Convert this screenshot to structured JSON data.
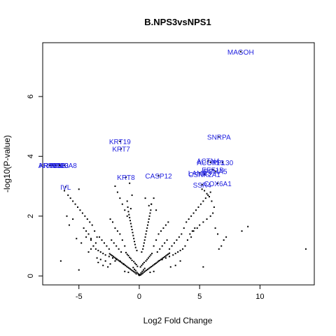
{
  "chart_data": {
    "type": "scatter",
    "title": "B.NPS3vsNPS1",
    "xlabel": "Log2 Fold Change",
    "ylabel": "-log10(P-value)",
    "xlim": [
      -8,
      14.5
    ],
    "ylim": [
      -0.3,
      7.8
    ],
    "xticks": [
      -5,
      0,
      5,
      10
    ],
    "yticks": [
      0,
      2,
      4,
      6
    ],
    "point_color": "#000000",
    "label_color": "#1f1fe0",
    "labeled_genes": [
      {
        "name": "MAGOH",
        "x": 8.4,
        "y": 7.5
      },
      {
        "name": "SNRPA",
        "x": 6.6,
        "y": 4.65
      },
      {
        "name": "KRT19",
        "x": -1.6,
        "y": 4.5
      },
      {
        "name": "KRT7",
        "x": -1.5,
        "y": 4.25
      },
      {
        "name": "ACOT13",
        "x": 5.9,
        "y": 3.8
      },
      {
        "name": "RPL30",
        "x": 6.9,
        "y": 3.8
      },
      {
        "name": "ACTN4",
        "x": 5.7,
        "y": 3.85
      },
      {
        "name": "KRT8",
        "x": -1.1,
        "y": 3.3
      },
      {
        "name": "CASP12",
        "x": 1.6,
        "y": 3.35
      },
      {
        "name": "LAMB3",
        "x": 5.0,
        "y": 3.45
      },
      {
        "name": "EEF1B",
        "x": 6.1,
        "y": 3.55
      },
      {
        "name": "PSMA5",
        "x": 6.3,
        "y": 3.5
      },
      {
        "name": "CSNK2A1",
        "x": 5.4,
        "y": 3.4
      },
      {
        "name": "SSR4",
        "x": 5.2,
        "y": 3.05
      },
      {
        "name": "COX6A1",
        "x": 6.5,
        "y": 3.1
      },
      {
        "name": "ARPC1B",
        "x": -7.2,
        "y": 3.7
      },
      {
        "name": "KRT15",
        "x": -7.4,
        "y": 3.7
      },
      {
        "name": "SFN",
        "x": -6.9,
        "y": 3.7
      },
      {
        "name": "PKP3",
        "x": -6.6,
        "y": 3.7
      },
      {
        "name": "S100A8",
        "x": -6.2,
        "y": 3.7
      },
      {
        "name": "IVL",
        "x": -6.1,
        "y": 2.98
      }
    ],
    "points": [
      [
        0.05,
        0.05
      ],
      [
        -0.1,
        0.08
      ],
      [
        0.15,
        0.1
      ],
      [
        -0.2,
        0.12
      ],
      [
        0.25,
        0.15
      ],
      [
        -0.3,
        0.18
      ],
      [
        0.35,
        0.2
      ],
      [
        -0.4,
        0.22
      ],
      [
        0.45,
        0.25
      ],
      [
        -0.5,
        0.28
      ],
      [
        0.1,
        0.3
      ],
      [
        -0.15,
        0.32
      ],
      [
        0.2,
        0.35
      ],
      [
        -0.25,
        0.38
      ],
      [
        0.3,
        0.4
      ],
      [
        -0.35,
        0.42
      ],
      [
        0.4,
        0.45
      ],
      [
        -0.45,
        0.48
      ],
      [
        0.55,
        0.5
      ],
      [
        -0.6,
        0.52
      ],
      [
        0.65,
        0.55
      ],
      [
        -0.7,
        0.58
      ],
      [
        0.75,
        0.6
      ],
      [
        -0.8,
        0.62
      ],
      [
        0.85,
        0.65
      ],
      [
        -0.9,
        0.68
      ],
      [
        0.95,
        0.7
      ],
      [
        -1.0,
        0.72
      ],
      [
        1.05,
        0.75
      ],
      [
        -1.1,
        0.78
      ],
      [
        0.2,
        0.8
      ],
      [
        -0.2,
        0.85
      ],
      [
        0.3,
        0.9
      ],
      [
        -0.3,
        0.95
      ],
      [
        0.35,
        1.0
      ],
      [
        -0.35,
        1.05
      ],
      [
        0.4,
        1.1
      ],
      [
        -0.4,
        1.15
      ],
      [
        0.45,
        1.2
      ],
      [
        -0.45,
        1.25
      ],
      [
        0.5,
        1.3
      ],
      [
        -0.5,
        1.35
      ],
      [
        0.55,
        1.4
      ],
      [
        -0.55,
        1.45
      ],
      [
        0.6,
        1.5
      ],
      [
        -0.6,
        1.55
      ],
      [
        0.65,
        1.6
      ],
      [
        -0.65,
        1.65
      ],
      [
        0.7,
        1.7
      ],
      [
        -0.7,
        1.75
      ],
      [
        0.75,
        1.8
      ],
      [
        -0.75,
        1.85
      ],
      [
        0.8,
        1.9
      ],
      [
        -0.8,
        1.95
      ],
      [
        0.85,
        2.0
      ],
      [
        -0.85,
        2.05
      ],
      [
        0.9,
        2.1
      ],
      [
        -0.9,
        2.15
      ],
      [
        0.95,
        2.2
      ],
      [
        -0.95,
        2.3
      ],
      [
        1.0,
        2.4
      ],
      [
        -1.0,
        2.5
      ],
      [
        0.5,
        2.6
      ],
      [
        -0.6,
        2.7
      ],
      [
        0.8,
        2.35
      ],
      [
        -0.7,
        2.25
      ],
      [
        1.2,
        1.0
      ],
      [
        -1.2,
        1.0
      ],
      [
        1.4,
        1.2
      ],
      [
        -1.4,
        1.2
      ],
      [
        1.6,
        1.4
      ],
      [
        -1.6,
        1.4
      ],
      [
        1.8,
        1.5
      ],
      [
        -1.8,
        1.5
      ],
      [
        2.0,
        1.6
      ],
      [
        -2.0,
        1.6
      ],
      [
        2.2,
        1.7
      ],
      [
        -2.2,
        1.8
      ],
      [
        2.4,
        1.8
      ],
      [
        -2.4,
        1.9
      ],
      [
        1.5,
        0.8
      ],
      [
        -1.5,
        0.8
      ],
      [
        1.7,
        0.9
      ],
      [
        -1.7,
        0.9
      ],
      [
        1.9,
        1.0
      ],
      [
        -1.9,
        1.0
      ],
      [
        2.1,
        1.1
      ],
      [
        -2.1,
        1.1
      ],
      [
        2.3,
        1.2
      ],
      [
        -2.3,
        1.2
      ],
      [
        2.5,
        0.9
      ],
      [
        -2.5,
        0.9
      ],
      [
        2.7,
        1.0
      ],
      [
        -2.7,
        1.0
      ],
      [
        2.9,
        1.1
      ],
      [
        -2.9,
        1.1
      ],
      [
        3.1,
        1.2
      ],
      [
        -3.1,
        1.2
      ],
      [
        3.3,
        1.3
      ],
      [
        -3.3,
        1.3
      ],
      [
        1.3,
        0.4
      ],
      [
        -1.3,
        0.4
      ],
      [
        1.6,
        0.5
      ],
      [
        -1.6,
        0.5
      ],
      [
        1.9,
        0.55
      ],
      [
        -1.9,
        0.55
      ],
      [
        2.2,
        0.6
      ],
      [
        -2.2,
        0.6
      ],
      [
        2.5,
        0.65
      ],
      [
        -2.5,
        0.65
      ],
      [
        2.8,
        0.7
      ],
      [
        -2.8,
        0.7
      ],
      [
        3.0,
        0.75
      ],
      [
        -3.0,
        0.75
      ],
      [
        3.2,
        0.8
      ],
      [
        -3.2,
        0.8
      ],
      [
        3.4,
        0.85
      ],
      [
        -3.4,
        0.85
      ],
      [
        3.6,
        0.9
      ],
      [
        -3.6,
        0.9
      ],
      [
        3.8,
        1.0
      ],
      [
        -3.8,
        1.0
      ],
      [
        4.0,
        1.2
      ],
      [
        -4.0,
        1.2
      ],
      [
        4.2,
        1.4
      ],
      [
        -4.2,
        1.4
      ],
      [
        4.4,
        1.5
      ],
      [
        -4.4,
        1.5
      ],
      [
        4.6,
        1.6
      ],
      [
        -4.6,
        1.6
      ],
      [
        3.5,
        1.4
      ],
      [
        -3.5,
        1.3
      ],
      [
        3.7,
        1.6
      ],
      [
        -3.7,
        1.5
      ],
      [
        3.9,
        1.8
      ],
      [
        -3.9,
        1.7
      ],
      [
        4.1,
        1.9
      ],
      [
        -4.1,
        1.8
      ],
      [
        4.3,
        2.0
      ],
      [
        -4.3,
        1.9
      ],
      [
        4.5,
        2.1
      ],
      [
        -4.5,
        2.0
      ],
      [
        4.7,
        2.2
      ],
      [
        -4.7,
        2.1
      ],
      [
        4.9,
        2.3
      ],
      [
        -4.9,
        2.2
      ],
      [
        5.1,
        2.4
      ],
      [
        -5.1,
        2.3
      ],
      [
        5.3,
        2.5
      ],
      [
        -5.3,
        2.4
      ],
      [
        5.5,
        2.6
      ],
      [
        -5.5,
        2.5
      ],
      [
        5.7,
        2.7
      ],
      [
        -5.7,
        2.6
      ],
      [
        5.9,
        2.8
      ],
      [
        -5.9,
        2.7
      ],
      [
        5.2,
        2.9
      ],
      [
        5.4,
        2.85
      ],
      [
        5.6,
        2.75
      ],
      [
        5.8,
        2.65
      ],
      [
        6.0,
        2.5
      ],
      [
        6.2,
        2.3
      ],
      [
        6.1,
        2.1
      ],
      [
        5.9,
        2.0
      ],
      [
        5.6,
        1.9
      ],
      [
        5.3,
        1.8
      ],
      [
        5.0,
        1.7
      ],
      [
        4.8,
        1.6
      ],
      [
        4.5,
        1.5
      ],
      [
        4.3,
        1.3
      ],
      [
        -3.6,
        1.1
      ],
      [
        -3.8,
        1.0
      ],
      [
        -4.0,
        0.9
      ],
      [
        -4.2,
        0.8
      ],
      [
        -2.0,
        0.5
      ],
      [
        -2.4,
        0.4
      ],
      [
        -2.8,
        0.5
      ],
      [
        -3.2,
        0.55
      ],
      [
        -3.5,
        0.6
      ],
      [
        -4.0,
        1.25
      ],
      [
        -4.4,
        1.3
      ],
      [
        -4.8,
        1.1
      ],
      [
        -5.2,
        1.25
      ],
      [
        -5.0,
        2.9
      ],
      [
        -5.5,
        1.9
      ],
      [
        -6.0,
        2.0
      ],
      [
        -6.2,
        2.85
      ],
      [
        -6.5,
        0.5
      ],
      [
        -5.0,
        0.2
      ],
      [
        -5.8,
        1.7
      ],
      [
        -2.0,
        3.0
      ],
      [
        -1.8,
        2.8
      ],
      [
        -1.6,
        2.6
      ],
      [
        -1.4,
        2.4
      ],
      [
        -1.2,
        2.2
      ],
      [
        -1.0,
        2.0
      ],
      [
        -0.8,
        3.1
      ],
      [
        1.2,
        2.6
      ],
      [
        1.0,
        2.4
      ],
      [
        1.4,
        2.2
      ],
      [
        8.5,
        1.5
      ],
      [
        9.0,
        1.65
      ],
      [
        5.3,
        0.3
      ],
      [
        13.8,
        0.9
      ],
      [
        7.0,
        1.2
      ],
      [
        6.8,
        1.0
      ],
      [
        6.5,
        1.4
      ],
      [
        6.3,
        1.6
      ],
      [
        7.2,
        1.3
      ],
      [
        6.6,
        0.9
      ],
      [
        0.0,
        0.02
      ],
      [
        0.1,
        0.03
      ],
      [
        -0.05,
        0.04
      ],
      [
        0.2,
        0.06
      ],
      [
        -0.25,
        0.07
      ],
      [
        0.3,
        0.09
      ],
      [
        -0.35,
        0.11
      ],
      [
        0.4,
        0.13
      ],
      [
        -0.45,
        0.14
      ],
      [
        0.5,
        0.16
      ],
      [
        -0.55,
        0.17
      ],
      [
        0.6,
        0.19
      ],
      [
        -0.65,
        0.2
      ],
      [
        0.7,
        0.22
      ],
      [
        -0.75,
        0.23
      ],
      [
        0.8,
        0.25
      ],
      [
        -0.85,
        0.26
      ],
      [
        0.9,
        0.28
      ],
      [
        -0.95,
        0.29
      ],
      [
        1.0,
        0.31
      ],
      [
        -1.05,
        0.32
      ],
      [
        1.1,
        0.34
      ],
      [
        -1.15,
        0.35
      ],
      [
        1.2,
        0.37
      ],
      [
        -1.25,
        0.38
      ],
      [
        1.3,
        0.4
      ],
      [
        -1.35,
        0.41
      ],
      [
        1.4,
        0.43
      ],
      [
        -1.45,
        0.44
      ],
      [
        1.5,
        0.46
      ],
      [
        -1.55,
        0.47
      ],
      [
        1.6,
        0.49
      ],
      [
        -1.65,
        0.5
      ],
      [
        1.7,
        0.52
      ],
      [
        -1.75,
        0.53
      ],
      [
        1.8,
        0.55
      ],
      [
        -1.85,
        0.56
      ],
      [
        1.9,
        0.58
      ],
      [
        -1.95,
        0.59
      ],
      [
        2.0,
        0.61
      ],
      [
        -2.05,
        0.62
      ],
      [
        2.1,
        0.64
      ],
      [
        -2.15,
        0.65
      ],
      [
        2.2,
        0.67
      ],
      [
        -2.25,
        0.68
      ],
      [
        2.3,
        0.7
      ],
      [
        -2.35,
        0.71
      ],
      [
        2.4,
        0.73
      ],
      [
        -2.45,
        0.74
      ],
      [
        2.5,
        0.76
      ],
      [
        -3.0,
        0.35
      ],
      [
        3.0,
        0.35
      ],
      [
        -3.4,
        0.45
      ],
      [
        3.4,
        0.5
      ],
      [
        -2.6,
        0.3
      ],
      [
        2.6,
        0.3
      ],
      [
        -1.2,
        0.15
      ],
      [
        1.2,
        0.15
      ],
      [
        -0.9,
        0.12
      ],
      [
        0.9,
        0.12
      ]
    ]
  }
}
